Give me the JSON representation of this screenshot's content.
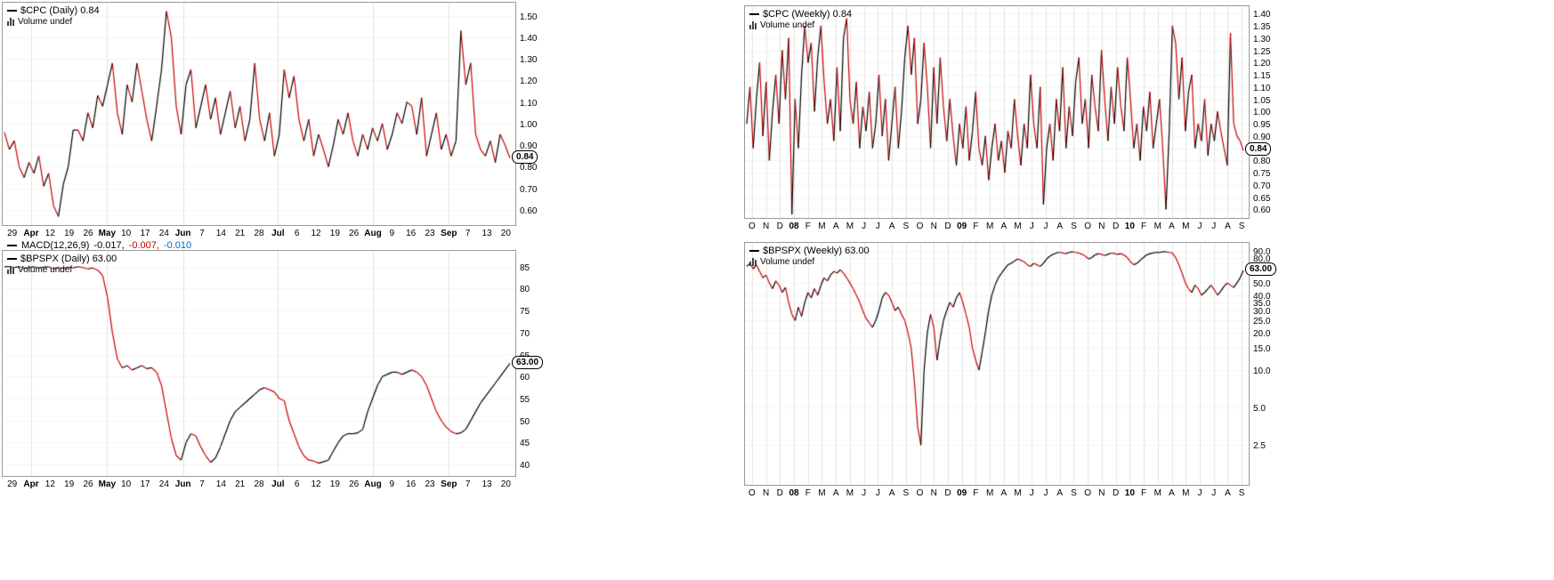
{
  "page": {
    "background": "#ffffff"
  },
  "colors": {
    "up": "#000000",
    "down": "#cc0000",
    "hgrid": "#f5f5f5",
    "vgrid": "#e4e4e4",
    "border": "#999999",
    "axis_text": "#000000",
    "badge_bg": "#ffffff",
    "badge_border": "#000000"
  },
  "macd": {
    "title": "MACD(12,26,9)",
    "values": [
      {
        "t": "-0.017,",
        "c": "#000000"
      },
      {
        "t": "-0.007,",
        "c": "#cc0000"
      },
      {
        "t": "-0.010",
        "c": "#0066cc"
      }
    ]
  },
  "chart_data": [
    {
      "id": "cpc-daily",
      "type": "line",
      "title": "$CPC (Daily) 0.84",
      "volume_label": "Volume undef",
      "badge": {
        "l": "0.84",
        "v": 0.84
      },
      "yscale": "linear",
      "ylim": [
        0.53,
        1.56
      ],
      "vgrid": "bold",
      "legend_position": "top-left",
      "y_ticks": [
        {
          "v": 1.5,
          "l": "1.50"
        },
        {
          "v": 1.4,
          "l": "1.40"
        },
        {
          "v": 1.3,
          "l": "1.30"
        },
        {
          "v": 1.2,
          "l": "1.20"
        },
        {
          "v": 1.1,
          "l": "1.10"
        },
        {
          "v": 1.0,
          "l": "1.00"
        },
        {
          "v": 0.9,
          "l": "0.90"
        },
        {
          "v": 0.8,
          "l": "0.80"
        },
        {
          "v": 0.7,
          "l": "0.70"
        },
        {
          "v": 0.6,
          "l": "0.60"
        }
      ],
      "x_ticks": [
        {
          "l": "29"
        },
        {
          "l": "Apr",
          "b": 1
        },
        {
          "l": "12"
        },
        {
          "l": "19"
        },
        {
          "l": "26"
        },
        {
          "l": "May",
          "b": 1
        },
        {
          "l": "10"
        },
        {
          "l": "17"
        },
        {
          "l": "24"
        },
        {
          "l": "Jun",
          "b": 1
        },
        {
          "l": "7"
        },
        {
          "l": "14"
        },
        {
          "l": "21"
        },
        {
          "l": "28"
        },
        {
          "l": "Jul",
          "b": 1
        },
        {
          "l": "6"
        },
        {
          "l": "12"
        },
        {
          "l": "19"
        },
        {
          "l": "26"
        },
        {
          "l": "Aug",
          "b": 1
        },
        {
          "l": "9"
        },
        {
          "l": "16"
        },
        {
          "l": "23"
        },
        {
          "l": "Sep",
          "b": 1
        },
        {
          "l": "7"
        },
        {
          "l": "13"
        },
        {
          "l": "20"
        }
      ],
      "values": [
        0.96,
        0.88,
        0.92,
        0.8,
        0.75,
        0.82,
        0.77,
        0.85,
        0.71,
        0.77,
        0.62,
        0.57,
        0.72,
        0.8,
        0.97,
        0.97,
        0.92,
        1.05,
        0.98,
        1.13,
        1.08,
        1.18,
        1.28,
        1.05,
        0.95,
        1.18,
        1.1,
        1.28,
        1.15,
        1.02,
        0.92,
        1.08,
        1.25,
        1.52,
        1.4,
        1.08,
        0.95,
        1.18,
        1.25,
        0.98,
        1.08,
        1.18,
        1.02,
        1.12,
        0.95,
        1.05,
        1.15,
        0.98,
        1.08,
        0.92,
        1.02,
        1.28,
        1.02,
        0.92,
        1.05,
        0.85,
        0.95,
        1.25,
        1.12,
        1.22,
        1.02,
        0.92,
        1.02,
        0.85,
        0.95,
        0.88,
        0.8,
        0.9,
        1.02,
        0.95,
        1.05,
        0.92,
        0.85,
        0.95,
        0.88,
        0.98,
        0.92,
        1.0,
        0.88,
        0.95,
        1.05,
        1.0,
        1.1,
        1.08,
        0.95,
        1.12,
        0.85,
        0.95,
        1.05,
        0.88,
        0.95,
        0.85,
        0.92,
        1.43,
        1.18,
        1.28,
        0.95,
        0.88,
        0.85,
        0.92,
        0.82,
        0.95,
        0.9,
        0.84
      ]
    },
    {
      "id": "cpc-weekly",
      "type": "line",
      "title": "$CPC (Weekly) 0.84",
      "volume_label": "Volume undef",
      "badge": {
        "l": "0.84",
        "v": 0.84
      },
      "yscale": "linear",
      "ylim": [
        0.565,
        1.43
      ],
      "vgrid": "all",
      "legend_position": "top-left",
      "y_ticks": [
        {
          "v": 1.4,
          "l": "1.40"
        },
        {
          "v": 1.35,
          "l": "1.35"
        },
        {
          "v": 1.3,
          "l": "1.30"
        },
        {
          "v": 1.25,
          "l": "1.25"
        },
        {
          "v": 1.2,
          "l": "1.20"
        },
        {
          "v": 1.15,
          "l": "1.15"
        },
        {
          "v": 1.1,
          "l": "1.10"
        },
        {
          "v": 1.05,
          "l": "1.05"
        },
        {
          "v": 1.0,
          "l": "1.00"
        },
        {
          "v": 0.95,
          "l": "0.95"
        },
        {
          "v": 0.9,
          "l": "0.90"
        },
        {
          "v": 0.85,
          "l": "0.85"
        },
        {
          "v": 0.8,
          "l": "0.80"
        },
        {
          "v": 0.75,
          "l": "0.75"
        },
        {
          "v": 0.7,
          "l": "0.70"
        },
        {
          "v": 0.65,
          "l": "0.65"
        },
        {
          "v": 0.6,
          "l": "0.60"
        }
      ],
      "x_ticks": [
        {
          "l": "O"
        },
        {
          "l": "N"
        },
        {
          "l": "D"
        },
        {
          "l": "08",
          "b": 1
        },
        {
          "l": "F"
        },
        {
          "l": "M"
        },
        {
          "l": "A"
        },
        {
          "l": "M"
        },
        {
          "l": "J"
        },
        {
          "l": "J"
        },
        {
          "l": "A"
        },
        {
          "l": "S"
        },
        {
          "l": "O"
        },
        {
          "l": "N"
        },
        {
          "l": "D"
        },
        {
          "l": "09",
          "b": 1
        },
        {
          "l": "F"
        },
        {
          "l": "M"
        },
        {
          "l": "A"
        },
        {
          "l": "M"
        },
        {
          "l": "J"
        },
        {
          "l": "J"
        },
        {
          "l": "A"
        },
        {
          "l": "S"
        },
        {
          "l": "O"
        },
        {
          "l": "N"
        },
        {
          "l": "D"
        },
        {
          "l": "10",
          "b": 1
        },
        {
          "l": "F"
        },
        {
          "l": "M"
        },
        {
          "l": "A"
        },
        {
          "l": "M"
        },
        {
          "l": "J"
        },
        {
          "l": "J"
        },
        {
          "l": "A"
        },
        {
          "l": "S"
        }
      ],
      "values": [
        0.95,
        1.1,
        0.85,
        1.05,
        1.2,
        0.9,
        1.12,
        0.8,
        1.0,
        1.15,
        0.95,
        1.25,
        1.05,
        1.3,
        0.58,
        1.05,
        0.85,
        1.15,
        1.35,
        1.2,
        1.28,
        1.0,
        1.22,
        1.35,
        1.12,
        0.95,
        1.05,
        0.88,
        1.18,
        0.92,
        1.3,
        1.38,
        1.05,
        0.95,
        1.12,
        0.85,
        1.02,
        0.92,
        1.08,
        0.85,
        0.95,
        1.15,
        0.9,
        1.05,
        0.8,
        0.95,
        1.1,
        0.85,
        1.0,
        1.22,
        1.35,
        1.15,
        1.3,
        0.95,
        1.05,
        1.28,
        1.1,
        0.85,
        1.18,
        0.95,
        1.22,
        1.02,
        0.88,
        1.05,
        0.9,
        0.78,
        0.95,
        0.85,
        1.02,
        0.8,
        0.92,
        1.08,
        0.85,
        0.78,
        0.9,
        0.72,
        0.85,
        0.95,
        0.8,
        0.88,
        0.75,
        0.92,
        0.85,
        1.05,
        0.9,
        0.78,
        0.95,
        0.85,
        1.15,
        0.95,
        0.85,
        1.1,
        0.62,
        0.85,
        0.95,
        0.8,
        1.05,
        0.92,
        1.18,
        0.85,
        1.02,
        0.9,
        1.12,
        1.22,
        0.95,
        1.05,
        0.85,
        1.15,
        1.02,
        0.92,
        1.25,
        1.05,
        0.88,
        1.1,
        0.95,
        1.18,
        1.02,
        0.92,
        1.22,
        1.05,
        0.85,
        0.95,
        0.8,
        1.02,
        0.92,
        1.08,
        0.85,
        0.95,
        1.05,
        0.85,
        0.6,
        0.92,
        1.35,
        1.28,
        1.05,
        1.22,
        0.92,
        1.08,
        1.15,
        0.85,
        0.95,
        0.88,
        1.05,
        0.82,
        0.95,
        0.88,
        1.0,
        0.92,
        0.85,
        0.78,
        1.32,
        0.95,
        0.9,
        0.88,
        0.84
      ]
    },
    {
      "id": "bpspx-daily",
      "type": "line",
      "title": "$BPSPX (Daily) 63.00",
      "volume_label": "Volume undef",
      "badge": {
        "l": "63.00",
        "v": 63
      },
      "yscale": "linear",
      "ylim": [
        37.4,
        88.6
      ],
      "vgrid": "bold",
      "legend_position": "top-left",
      "y_ticks": [
        {
          "v": 85,
          "l": "85"
        },
        {
          "v": 80,
          "l": "80"
        },
        {
          "v": 75,
          "l": "75"
        },
        {
          "v": 70,
          "l": "70"
        },
        {
          "v": 65,
          "l": "65"
        },
        {
          "v": 60,
          "l": "60"
        },
        {
          "v": 55,
          "l": "55"
        },
        {
          "v": 50,
          "l": "50"
        },
        {
          "v": 45,
          "l": "45"
        },
        {
          "v": 40,
          "l": "40"
        }
      ],
      "x_ticks": [
        {
          "l": "29"
        },
        {
          "l": "Apr",
          "b": 1
        },
        {
          "l": "12"
        },
        {
          "l": "19"
        },
        {
          "l": "26"
        },
        {
          "l": "May",
          "b": 1
        },
        {
          "l": "10"
        },
        {
          "l": "17"
        },
        {
          "l": "24"
        },
        {
          "l": "Jun",
          "b": 1
        },
        {
          "l": "7"
        },
        {
          "l": "14"
        },
        {
          "l": "21"
        },
        {
          "l": "28"
        },
        {
          "l": "Jul",
          "b": 1
        },
        {
          "l": "6"
        },
        {
          "l": "12"
        },
        {
          "l": "19"
        },
        {
          "l": "26"
        },
        {
          "l": "Aug",
          "b": 1
        },
        {
          "l": "9"
        },
        {
          "l": "16"
        },
        {
          "l": "23"
        },
        {
          "l": "Sep",
          "b": 1
        },
        {
          "l": "7"
        },
        {
          "l": "13"
        },
        {
          "l": "20"
        }
      ],
      "values": [
        85,
        85,
        84.8,
        85,
        84.6,
        84.8,
        85,
        84.7,
        84.9,
        85,
        84.5,
        84.8,
        84.6,
        84.9,
        84.7,
        85,
        84.8,
        84.5,
        84.7,
        84.2,
        83,
        78,
        70,
        64,
        62,
        62.5,
        61.5,
        62,
        62.5,
        61.8,
        62,
        61,
        58,
        52,
        46,
        42,
        41,
        45,
        47,
        46.5,
        44,
        42,
        40.5,
        41.5,
        44,
        47,
        50,
        52,
        53,
        54,
        55,
        56,
        57,
        57.5,
        57,
        56.5,
        55,
        54.5,
        50,
        47,
        44,
        42,
        41,
        40.8,
        40.3,
        40.6,
        41,
        43,
        45,
        46.5,
        47,
        47,
        47.2,
        48,
        52,
        55,
        58,
        60,
        60.5,
        61,
        61,
        60.5,
        61,
        61.5,
        61,
        60,
        58,
        55,
        52,
        50,
        48.5,
        47.5,
        47,
        47.2,
        48,
        50,
        52,
        54,
        55.5,
        57,
        58.5,
        60,
        61.5,
        63
      ]
    },
    {
      "id": "bpspx-weekly",
      "type": "line",
      "title": "$BPSPX (Weekly) 63.00",
      "volume_label": "Volume undef",
      "badge": {
        "l": "63.00",
        "v": 63
      },
      "yscale": "log",
      "ylim": [
        1.2,
        105
      ],
      "vgrid": "all",
      "legend_position": "top-left",
      "y_ticks": [
        {
          "v": 90,
          "l": "90.0"
        },
        {
          "v": 80,
          "l": "80.0"
        },
        {
          "v": 50,
          "l": "50.0"
        },
        {
          "v": 40,
          "l": "40.0"
        },
        {
          "v": 35,
          "l": "35.0"
        },
        {
          "v": 30,
          "l": "30.0"
        },
        {
          "v": 25,
          "l": "25.0"
        },
        {
          "v": 20,
          "l": "20.0"
        },
        {
          "v": 15,
          "l": "15.0"
        },
        {
          "v": 10,
          "l": "10.0"
        },
        {
          "v": 5,
          "l": "5.0"
        },
        {
          "v": 2.5,
          "l": "2.5"
        }
      ],
      "x_ticks": [
        {
          "l": "O"
        },
        {
          "l": "N"
        },
        {
          "l": "D"
        },
        {
          "l": "08",
          "b": 1
        },
        {
          "l": "F"
        },
        {
          "l": "M"
        },
        {
          "l": "A"
        },
        {
          "l": "M"
        },
        {
          "l": "J"
        },
        {
          "l": "J"
        },
        {
          "l": "A"
        },
        {
          "l": "S"
        },
        {
          "l": "O"
        },
        {
          "l": "N"
        },
        {
          "l": "D"
        },
        {
          "l": "09",
          "b": 1
        },
        {
          "l": "F"
        },
        {
          "l": "M"
        },
        {
          "l": "A"
        },
        {
          "l": "M"
        },
        {
          "l": "J"
        },
        {
          "l": "J"
        },
        {
          "l": "A"
        },
        {
          "l": "S"
        },
        {
          "l": "O"
        },
        {
          "l": "N"
        },
        {
          "l": "D"
        },
        {
          "l": "10",
          "b": 1
        },
        {
          "l": "F"
        },
        {
          "l": "M"
        },
        {
          "l": "A"
        },
        {
          "l": "M"
        },
        {
          "l": "J"
        },
        {
          "l": "J"
        },
        {
          "l": "A"
        },
        {
          "l": "S"
        }
      ],
      "values": [
        68,
        72,
        65,
        70,
        62,
        55,
        58,
        50,
        45,
        52,
        48,
        42,
        46,
        35,
        28,
        25,
        32,
        27,
        35,
        42,
        38,
        45,
        40,
        48,
        55,
        52,
        58,
        62,
        60,
        64,
        60,
        55,
        50,
        45,
        40,
        35,
        30,
        26,
        24,
        22,
        25,
        30,
        38,
        42,
        40,
        35,
        30,
        32,
        28,
        25,
        20,
        15,
        8,
        3.5,
        2.5,
        10,
        20,
        28,
        22,
        12,
        18,
        25,
        30,
        35,
        32,
        38,
        42,
        35,
        28,
        22,
        15,
        12,
        10,
        14,
        20,
        30,
        40,
        48,
        55,
        60,
        65,
        70,
        72,
        75,
        78,
        76,
        74,
        70,
        68,
        72,
        70,
        68,
        72,
        78,
        82,
        85,
        87,
        88,
        87,
        86,
        88,
        89,
        88,
        87,
        85,
        82,
        78,
        80,
        84,
        86,
        85,
        83,
        85,
        87,
        86,
        85,
        86,
        84,
        80,
        74,
        70,
        72,
        76,
        80,
        84,
        86,
        87,
        88,
        88,
        89,
        89,
        88,
        87,
        80,
        70,
        60,
        50,
        45,
        42,
        48,
        45,
        40,
        42,
        45,
        48,
        44,
        40,
        43,
        47,
        50,
        48,
        46,
        50,
        55,
        63
      ]
    }
  ]
}
